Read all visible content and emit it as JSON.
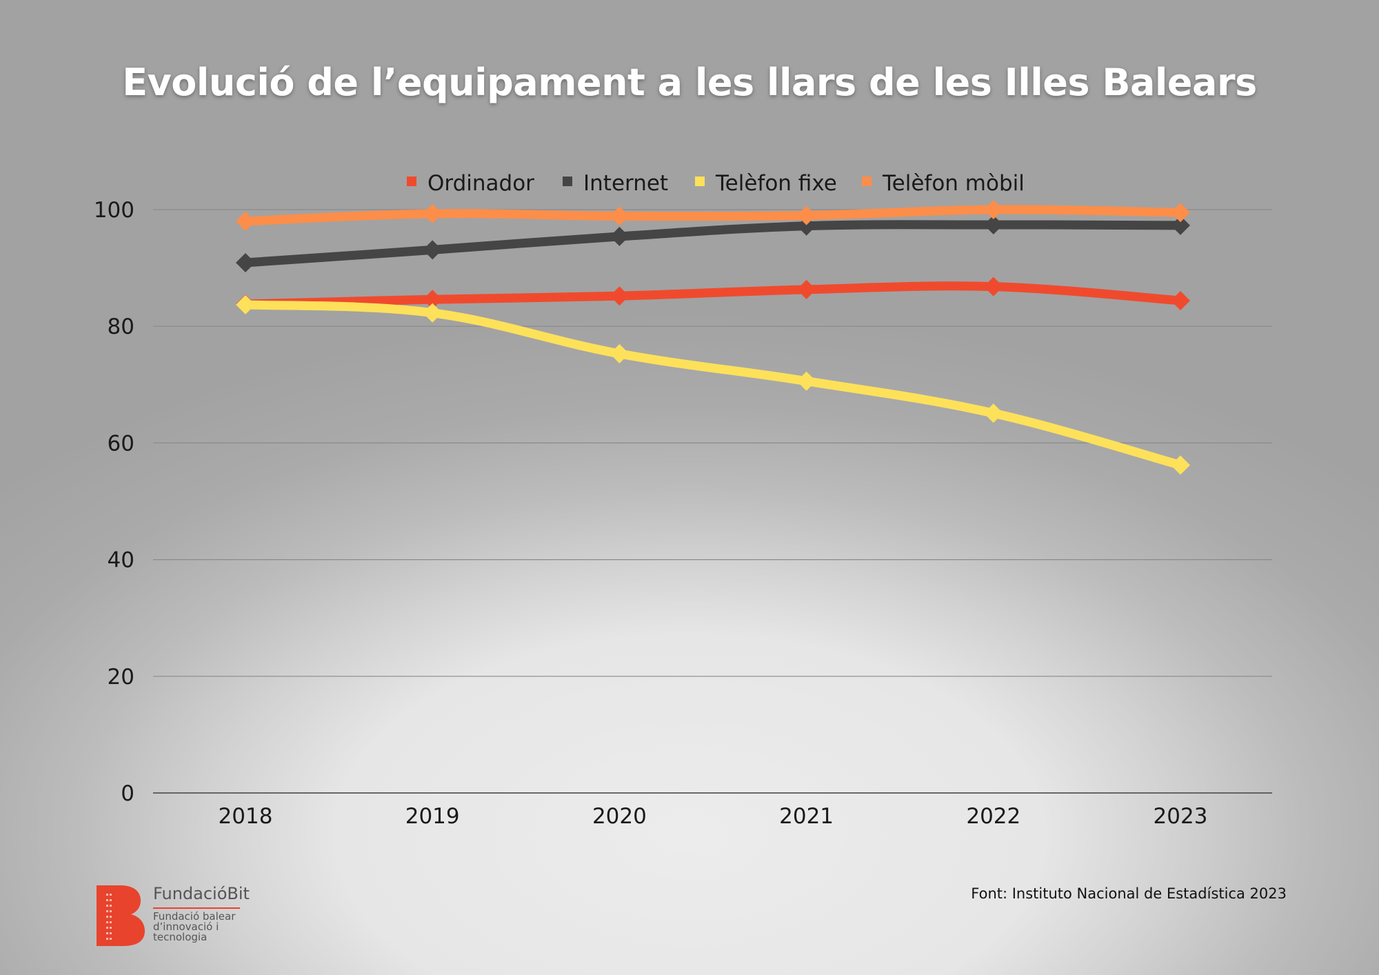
{
  "chart_data": {
    "type": "line",
    "title": "Evolució de l’equipament a les llars de les Illes Balears",
    "xlabel": "",
    "ylabel": "",
    "categories": [
      "2018",
      "2019",
      "2020",
      "2021",
      "2022",
      "2023"
    ],
    "ylim": [
      0,
      100
    ],
    "yticks": [
      0,
      20,
      40,
      60,
      80,
      100
    ],
    "grid": true,
    "legend_position": "top-center",
    "marker": "diamond",
    "series": [
      {
        "name": "Ordinador",
        "color": "#f04a2e",
        "values": [
          83.8,
          84.6,
          85.2,
          86.3,
          86.8,
          84.4
        ]
      },
      {
        "name": "Internet",
        "color": "#454545",
        "values": [
          90.9,
          93.1,
          95.4,
          97.2,
          97.4,
          97.3
        ]
      },
      {
        "name": "Telèfon fixe",
        "color": "#fde15a",
        "values": [
          83.7,
          82.3,
          75.3,
          70.6,
          65.1,
          56.2
        ]
      },
      {
        "name": "Telèfon mòbil",
        "color": "#fc8e4a",
        "values": [
          98.0,
          99.3,
          98.9,
          99.0,
          100.0,
          99.5
        ]
      }
    ]
  },
  "source": "Font: Instituto Nacional de Estadística 2023",
  "logo": {
    "name": "FundacióBit",
    "subtitle": "Fundació balear\nd’innovació i\ntecnologia",
    "accent_color": "#e8432d"
  }
}
